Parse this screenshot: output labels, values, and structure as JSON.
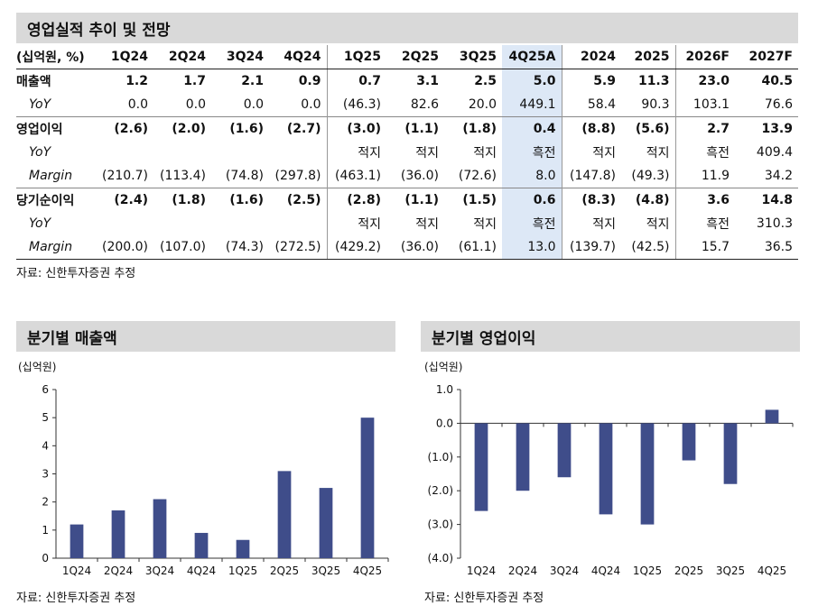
{
  "table_section": {
    "title": "영업실적 추이 및 전망",
    "header": [
      "(십억원, %)",
      "1Q24",
      "2Q24",
      "3Q24",
      "4Q24",
      "1Q25",
      "2Q25",
      "3Q25",
      "4Q25A",
      "2024",
      "2025",
      "2026F",
      "2027F"
    ],
    "rows": [
      {
        "label": "매출액",
        "style": "main",
        "values": [
          "1.2",
          "1.7",
          "2.1",
          "0.9",
          "0.7",
          "3.1",
          "2.5",
          "5.0",
          "5.9",
          "11.3",
          "23.0",
          "40.5"
        ]
      },
      {
        "label": "YoY",
        "style": "sub",
        "values": [
          "0.0",
          "0.0",
          "0.0",
          "0.0",
          "(46.3)",
          "82.6",
          "20.0",
          "449.1",
          "58.4",
          "90.3",
          "103.1",
          "76.6"
        ]
      },
      {
        "label": "영업이익",
        "style": "main",
        "group_start": true,
        "values": [
          "(2.6)",
          "(2.0)",
          "(1.6)",
          "(2.7)",
          "(3.0)",
          "(1.1)",
          "(1.8)",
          "0.4",
          "(8.8)",
          "(5.6)",
          "2.7",
          "13.9"
        ]
      },
      {
        "label": "YoY",
        "style": "sub",
        "values": [
          "",
          "",
          "",
          "",
          "적지",
          "적지",
          "적지",
          "흑전",
          "적지",
          "적지",
          "흑전",
          "409.4"
        ]
      },
      {
        "label": "Margin",
        "style": "sub",
        "values": [
          "(210.7)",
          "(113.4)",
          "(74.8)",
          "(297.8)",
          "(463.1)",
          "(36.0)",
          "(72.6)",
          "8.0",
          "(147.8)",
          "(49.3)",
          "11.9",
          "34.2"
        ]
      },
      {
        "label": "당기순이익",
        "style": "main",
        "group_start": true,
        "values": [
          "(2.4)",
          "(1.8)",
          "(1.6)",
          "(2.5)",
          "(2.8)",
          "(1.1)",
          "(1.5)",
          "0.6",
          "(8.3)",
          "(4.8)",
          "3.6",
          "14.8"
        ]
      },
      {
        "label": "YoY",
        "style": "sub",
        "values": [
          "",
          "",
          "",
          "",
          "적지",
          "적지",
          "적지",
          "흑전",
          "적지",
          "적지",
          "흑전",
          "310.3"
        ]
      },
      {
        "label": "Margin",
        "style": "sub",
        "values": [
          "(200.0)",
          "(107.0)",
          "(74.3)",
          "(272.5)",
          "(429.2)",
          "(36.0)",
          "(61.1)",
          "13.0",
          "(139.7)",
          "(42.5)",
          "15.7",
          "36.5"
        ]
      }
    ],
    "source": "자료: 신한투자증권 추정"
  },
  "charts": {
    "revenue": {
      "title": "분기별 매출액",
      "unit": "(십억원)",
      "source": "자료: 신한투자증권 추정",
      "ytick_labels": [
        "0",
        "1",
        "2",
        "3",
        "4",
        "5",
        "6"
      ]
    },
    "op_income": {
      "title": "분기별 영업이익",
      "unit": "(십억원)",
      "source": "자료: 신한투자증권 추정",
      "ytick_labels": [
        "(4.0)",
        "(3.0)",
        "(2.0)",
        "(1.0)",
        "0.0",
        "1.0"
      ]
    }
  },
  "chart_data": [
    {
      "type": "bar",
      "title": "분기별 매출액",
      "ylabel": "(십억원)",
      "categories": [
        "1Q24",
        "2Q24",
        "3Q24",
        "4Q24",
        "1Q25",
        "2Q25",
        "3Q25",
        "4Q25"
      ],
      "values": [
        1.2,
        1.7,
        2.1,
        0.9,
        0.65,
        3.1,
        2.5,
        5.0
      ],
      "ylim": [
        0,
        6
      ],
      "yticks": [
        0,
        1,
        2,
        3,
        4,
        5,
        6
      ],
      "grid": false,
      "color": "#3f4d8a"
    },
    {
      "type": "bar",
      "title": "분기별 영업이익",
      "ylabel": "(십억원)",
      "categories": [
        "1Q24",
        "2Q24",
        "3Q24",
        "4Q24",
        "1Q25",
        "2Q25",
        "3Q25",
        "4Q25"
      ],
      "values": [
        -2.6,
        -2.0,
        -1.6,
        -2.7,
        -3.0,
        -1.1,
        -1.8,
        0.4
      ],
      "ylim": [
        -4,
        1
      ],
      "yticks": [
        -4,
        -3,
        -2,
        -1,
        0,
        1
      ],
      "grid": false,
      "color": "#3f4d8a"
    }
  ]
}
